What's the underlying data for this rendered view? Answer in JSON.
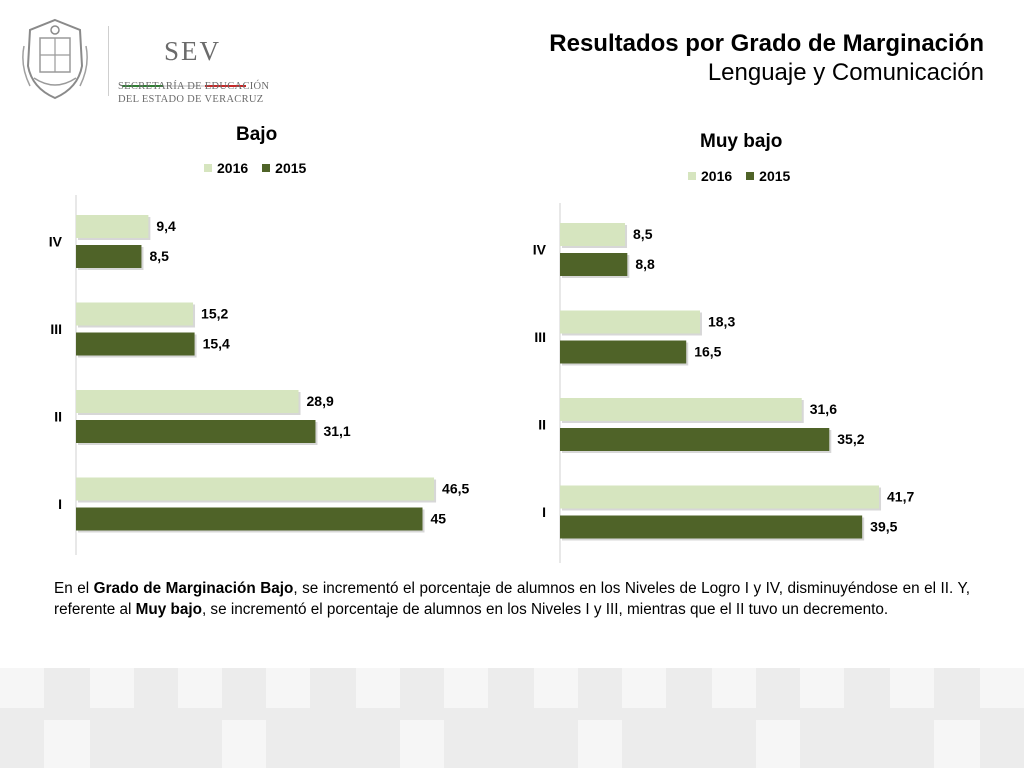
{
  "header": {
    "org_short": "SEV",
    "org_line1": "SECRETARÍA DE EDUCACIÓN",
    "org_line2": "DEL ESTADO DE VERACRUZ",
    "title": "Resultados por Grado de Marginación",
    "subtitle": "Lenguaje y Comunicación"
  },
  "colors": {
    "y2016": "#d6e5bf",
    "y2015": "#4f6328",
    "flag_green": "#2e7d32",
    "flag_red": "#c62828"
  },
  "chart_data": [
    {
      "type": "bar",
      "orientation": "horizontal",
      "title": "Bajo",
      "categories": [
        "IV",
        "III",
        "II",
        "I"
      ],
      "series": [
        {
          "name": "2016",
          "values": [
            9.4,
            15.2,
            28.9,
            46.5
          ],
          "labels": [
            "9,4",
            "15,2",
            "28,9",
            "46,5"
          ]
        },
        {
          "name": "2015",
          "values": [
            8.5,
            15.4,
            31.1,
            45.0
          ],
          "labels": [
            "8,5",
            "15,4",
            "31,1",
            "45"
          ]
        }
      ],
      "legend_position": "top",
      "grid": false
    },
    {
      "type": "bar",
      "orientation": "horizontal",
      "title": "Muy bajo",
      "categories": [
        "IV",
        "III",
        "II",
        "I"
      ],
      "series": [
        {
          "name": "2016",
          "values": [
            8.5,
            18.3,
            31.6,
            41.7
          ],
          "labels": [
            "8,5",
            "18,3",
            "31,6",
            "41,7"
          ]
        },
        {
          "name": "2015",
          "values": [
            8.8,
            16.5,
            35.2,
            39.5
          ],
          "labels": [
            "8,8",
            "16,5",
            "35,2",
            "39,5"
          ]
        }
      ],
      "legend_position": "top",
      "grid": false
    }
  ],
  "paragraph": {
    "p1": "En el ",
    "b1": "Grado de Marginación Bajo",
    "p2": ", se incrementó el porcentaje de alumnos en los Niveles de Logro I y IV, disminuyéndose en el II. Y, referente al ",
    "b2": "Muy bajo",
    "p3": ", se incrementó el porcentaje de alumnos en los Niveles I y III, mientras que  el II tuvo un  decremento."
  }
}
